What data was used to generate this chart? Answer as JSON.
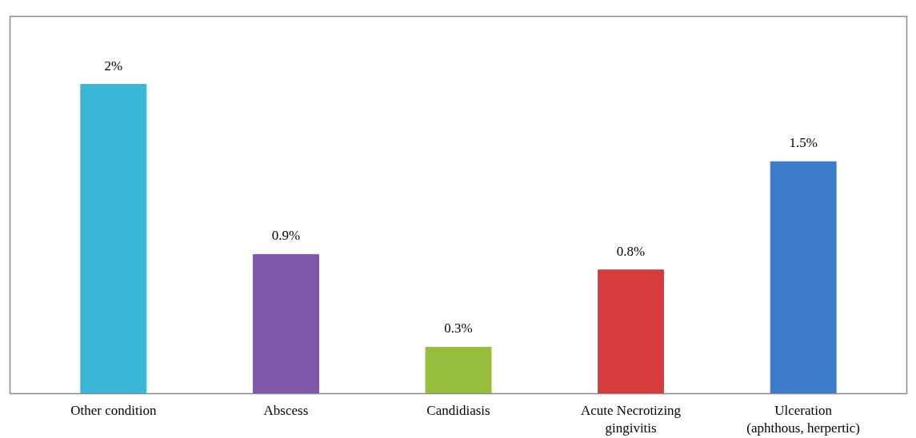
{
  "chart_data": {
    "type": "bar",
    "categories": [
      "Other condition",
      "Abscess",
      "Candidiasis",
      "Acute Necrotizing\ngingivitis",
      "Ulceration\n(aphthous, herpertic)"
    ],
    "values": [
      2,
      0.9,
      0.3,
      0.8,
      1.5
    ],
    "colors": [
      "#3ab6d6",
      "#7e57a9",
      "#97bd3d",
      "#d63c3c",
      "#3d7bcc"
    ],
    "value_labels": [
      "2%",
      "0.9%",
      "0.3%",
      "0.8%",
      "1.5%"
    ]
  }
}
